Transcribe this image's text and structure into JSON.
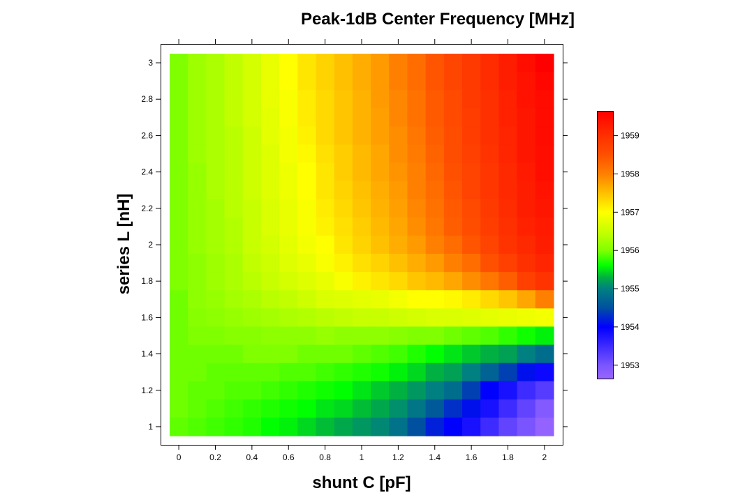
{
  "chart_data": {
    "type": "heatmap",
    "title": "Peak-1dB Center Frequency [MHz]",
    "xlabel": "shunt C [pF]",
    "ylabel": "series L [nH]",
    "x": [
      0,
      0.1,
      0.2,
      0.3,
      0.4,
      0.5,
      0.6,
      0.7,
      0.8,
      0.9,
      1.0,
      1.1,
      1.2,
      1.3,
      1.4,
      1.5,
      1.6,
      1.7,
      1.8,
      1.9,
      2.0
    ],
    "y": [
      3.0,
      2.9,
      2.8,
      2.7,
      2.6,
      2.5,
      2.4,
      2.3,
      2.2,
      2.1,
      2.0,
      1.9,
      1.8,
      1.7,
      1.6,
      1.5,
      1.4,
      1.3,
      1.2,
      1.1,
      1.0
    ],
    "xticks": [
      "0",
      "0.2",
      "0.4",
      "0.6",
      "0.8",
      "1",
      "1.2",
      "1.4",
      "1.6",
      "1.8",
      "2"
    ],
    "xtick_values": [
      0,
      0.2,
      0.4,
      0.6,
      0.8,
      1,
      1.2,
      1.4,
      1.6,
      1.8,
      2
    ],
    "yticks": [
      "1",
      "1.2",
      "1.4",
      "1.6",
      "1.8",
      "2",
      "2.2",
      "2.4",
      "2.6",
      "2.8",
      "3"
    ],
    "ytick_values": [
      1,
      1.2,
      1.4,
      1.6,
      1.8,
      2,
      2.2,
      2.4,
      2.6,
      2.8,
      3
    ],
    "xlim": [
      -0.05,
      2.05
    ],
    "ylim": [
      0.95,
      3.05
    ],
    "colorbar": {
      "ticks": [
        "1953",
        "1954",
        "1955",
        "1956",
        "1957",
        "1958",
        "1959"
      ],
      "tick_values": [
        1953,
        1954,
        1955,
        1956,
        1957,
        1958,
        1959
      ],
      "range": [
        1952.64,
        1959.64
      ],
      "colormap": [
        [
          1952.64,
          "#9966ff"
        ],
        [
          1953.0,
          "#7a55ff"
        ],
        [
          1954.0,
          "#0000ff"
        ],
        [
          1954.5,
          "#0050a0"
        ],
        [
          1955.0,
          "#008080"
        ],
        [
          1955.3,
          "#00b040"
        ],
        [
          1955.6,
          "#00ff00"
        ],
        [
          1956.0,
          "#80ff00"
        ],
        [
          1956.5,
          "#c8ff00"
        ],
        [
          1957.0,
          "#ffff00"
        ],
        [
          1957.5,
          "#ffc000"
        ],
        [
          1958.0,
          "#ff8000"
        ],
        [
          1958.5,
          "#ff5000"
        ],
        [
          1959.0,
          "#ff3000"
        ],
        [
          1959.64,
          "#ff0000"
        ]
      ]
    },
    "z": [
      [
        1956.0,
        1956.2,
        1956.3,
        1956.45,
        1956.6,
        1956.8,
        1957.0,
        1957.2,
        1957.35,
        1957.5,
        1957.65,
        1957.8,
        1958.0,
        1958.2,
        1958.45,
        1958.65,
        1958.85,
        1959.05,
        1959.25,
        1959.45,
        1959.65
      ],
      [
        1956.0,
        1956.2,
        1956.3,
        1956.45,
        1956.6,
        1956.8,
        1957.0,
        1957.2,
        1957.35,
        1957.5,
        1957.65,
        1957.8,
        1958.0,
        1958.2,
        1958.45,
        1958.65,
        1958.85,
        1959.05,
        1959.25,
        1959.4,
        1959.55
      ],
      [
        1956.0,
        1956.2,
        1956.3,
        1956.45,
        1956.6,
        1956.8,
        1956.95,
        1957.15,
        1957.3,
        1957.45,
        1957.6,
        1957.8,
        1957.95,
        1958.15,
        1958.4,
        1958.6,
        1958.85,
        1959.0,
        1959.2,
        1959.4,
        1959.5
      ],
      [
        1956.0,
        1956.2,
        1956.3,
        1956.45,
        1956.6,
        1956.75,
        1956.95,
        1957.15,
        1957.3,
        1957.45,
        1957.6,
        1957.75,
        1957.95,
        1958.15,
        1958.4,
        1958.6,
        1958.8,
        1959.0,
        1959.2,
        1959.35,
        1959.5
      ],
      [
        1956.0,
        1956.2,
        1956.3,
        1956.4,
        1956.55,
        1956.75,
        1956.9,
        1957.1,
        1957.3,
        1957.45,
        1957.6,
        1957.75,
        1957.9,
        1958.1,
        1958.35,
        1958.55,
        1958.8,
        1959.0,
        1959.15,
        1959.35,
        1959.5
      ],
      [
        1956.0,
        1956.2,
        1956.3,
        1956.4,
        1956.55,
        1956.7,
        1956.9,
        1957.05,
        1957.25,
        1957.4,
        1957.55,
        1957.7,
        1957.9,
        1958.05,
        1958.3,
        1958.55,
        1958.75,
        1958.95,
        1959.15,
        1959.35,
        1959.45
      ],
      [
        1956.0,
        1956.15,
        1956.3,
        1956.4,
        1956.55,
        1956.7,
        1956.85,
        1957.0,
        1957.2,
        1957.4,
        1957.55,
        1957.7,
        1957.85,
        1958.0,
        1958.25,
        1958.5,
        1958.7,
        1958.9,
        1959.1,
        1959.3,
        1959.45
      ],
      [
        1956.0,
        1956.15,
        1956.3,
        1956.4,
        1956.55,
        1956.7,
        1956.85,
        1957.0,
        1957.2,
        1957.35,
        1957.5,
        1957.65,
        1957.8,
        1958.0,
        1958.2,
        1958.45,
        1958.7,
        1958.9,
        1959.1,
        1959.25,
        1959.4
      ],
      [
        1956.0,
        1956.15,
        1956.25,
        1956.4,
        1956.5,
        1956.65,
        1956.8,
        1956.95,
        1957.15,
        1957.3,
        1957.45,
        1957.6,
        1957.75,
        1957.95,
        1958.15,
        1958.4,
        1958.6,
        1958.85,
        1959.05,
        1959.25,
        1959.35
      ],
      [
        1956.0,
        1956.15,
        1956.25,
        1956.35,
        1956.5,
        1956.65,
        1956.8,
        1956.95,
        1957.1,
        1957.25,
        1957.4,
        1957.55,
        1957.7,
        1957.9,
        1958.1,
        1958.35,
        1958.55,
        1958.8,
        1959.0,
        1959.2,
        1959.3
      ],
      [
        1956.0,
        1956.15,
        1956.25,
        1956.35,
        1956.5,
        1956.6,
        1956.75,
        1956.9,
        1957.0,
        1957.2,
        1957.35,
        1957.5,
        1957.65,
        1957.8,
        1958.0,
        1958.2,
        1958.45,
        1958.7,
        1958.95,
        1959.1,
        1959.25
      ],
      [
        1956.0,
        1956.1,
        1956.2,
        1956.3,
        1956.45,
        1956.55,
        1956.7,
        1956.8,
        1956.95,
        1957.1,
        1957.25,
        1957.35,
        1957.5,
        1957.65,
        1957.8,
        1958.0,
        1958.2,
        1958.5,
        1958.75,
        1959.0,
        1959.15
      ],
      [
        1956.0,
        1956.1,
        1956.2,
        1956.3,
        1956.4,
        1956.5,
        1956.6,
        1956.7,
        1956.8,
        1956.95,
        1957.1,
        1957.2,
        1957.3,
        1957.45,
        1957.55,
        1957.7,
        1957.9,
        1958.1,
        1958.35,
        1958.75,
        1958.95
      ],
      [
        1955.95,
        1956.1,
        1956.15,
        1956.25,
        1956.3,
        1956.4,
        1956.45,
        1956.55,
        1956.65,
        1956.7,
        1956.75,
        1956.8,
        1956.9,
        1957.0,
        1957.0,
        1957.05,
        1957.15,
        1957.3,
        1957.45,
        1957.7,
        1958.0
      ],
      [
        1955.95,
        1956.05,
        1956.1,
        1956.15,
        1956.2,
        1956.25,
        1956.3,
        1956.35,
        1956.4,
        1956.45,
        1956.5,
        1956.5,
        1956.55,
        1956.6,
        1956.65,
        1956.65,
        1956.7,
        1956.75,
        1956.8,
        1956.85,
        1956.9
      ],
      [
        1955.95,
        1956.0,
        1956.0,
        1956.05,
        1956.05,
        1956.1,
        1956.1,
        1956.1,
        1956.15,
        1956.1,
        1956.1,
        1956.1,
        1956.05,
        1956.0,
        1956.0,
        1955.95,
        1955.9,
        1955.85,
        1955.75,
        1955.65,
        1955.55
      ],
      [
        1955.95,
        1955.95,
        1955.95,
        1955.95,
        1956.0,
        1956.0,
        1956.0,
        1955.95,
        1955.95,
        1955.95,
        1955.9,
        1955.85,
        1955.8,
        1955.7,
        1955.6,
        1955.5,
        1955.4,
        1955.3,
        1955.2,
        1955.0,
        1954.8
      ],
      [
        1955.95,
        1955.95,
        1955.9,
        1955.9,
        1955.9,
        1955.9,
        1955.85,
        1955.85,
        1955.8,
        1955.75,
        1955.7,
        1955.65,
        1955.55,
        1955.45,
        1955.3,
        1955.2,
        1955.0,
        1954.7,
        1954.4,
        1954.1,
        1953.9
      ],
      [
        1955.95,
        1955.9,
        1955.9,
        1955.85,
        1955.85,
        1955.8,
        1955.75,
        1955.7,
        1955.65,
        1955.6,
        1955.5,
        1955.4,
        1955.3,
        1955.15,
        1955.0,
        1954.8,
        1954.4,
        1954.0,
        1953.8,
        1953.5,
        1953.3
      ],
      [
        1955.95,
        1955.9,
        1955.85,
        1955.8,
        1955.75,
        1955.7,
        1955.65,
        1955.6,
        1955.5,
        1955.45,
        1955.35,
        1955.25,
        1955.1,
        1954.9,
        1954.6,
        1954.3,
        1954.1,
        1953.8,
        1953.5,
        1953.2,
        1952.9
      ],
      [
        1955.9,
        1955.85,
        1955.8,
        1955.75,
        1955.7,
        1955.6,
        1955.55,
        1955.45,
        1955.35,
        1955.25,
        1955.15,
        1955.05,
        1954.85,
        1954.5,
        1954.2,
        1954.0,
        1953.8,
        1953.5,
        1953.2,
        1953.0,
        1952.7
      ]
    ]
  }
}
